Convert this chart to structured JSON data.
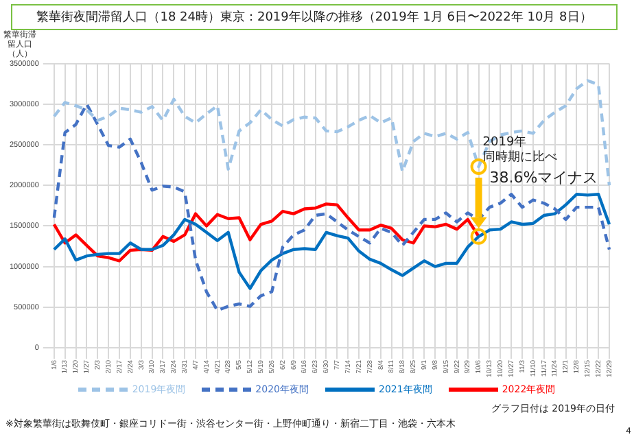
{
  "chart_data": {
    "type": "line",
    "title": "繁華街夜間滞留人口（18 24時）東京：2019年以降の推移（2019年 1月 6日〜2022年 10月 8日）",
    "ylabel": "繁華街滞留人口（人）",
    "categories": [
      "1/6",
      "1/13",
      "1/20",
      "1/27",
      "2/3",
      "2/10",
      "2/17",
      "2/24",
      "3/3",
      "3/10",
      "3/17",
      "3/24",
      "3/31",
      "4/7",
      "4/14",
      "4/21",
      "4/28",
      "5/5",
      "5/12",
      "5/19",
      "5/26",
      "6/2",
      "6/9",
      "6/16",
      "6/23",
      "6/30",
      "7/7",
      "7/14",
      "7/21",
      "7/28",
      "8/4",
      "8/11",
      "8/18",
      "8/25",
      "9/1",
      "9/8",
      "9/15",
      "9/22",
      "9/29",
      "10/6",
      "10/13",
      "10/20",
      "10/27",
      "11/3",
      "11/10",
      "11/17",
      "11/24",
      "12/1",
      "12/8",
      "12/15",
      "12/22",
      "12/29"
    ],
    "series": [
      {
        "name": "2019年夜間",
        "color": "#9dc3e6",
        "line_style": "dashed",
        "values": [
          2850000,
          3020000,
          2980000,
          2930000,
          2800000,
          2850000,
          2950000,
          2930000,
          2900000,
          2970000,
          2800000,
          3060000,
          2850000,
          2770000,
          2880000,
          2980000,
          2200000,
          2670000,
          2770000,
          2930000,
          2810000,
          2730000,
          2810000,
          2840000,
          2830000,
          2670000,
          2660000,
          2720000,
          2800000,
          2860000,
          2770000,
          2830000,
          2170000,
          2540000,
          2640000,
          2600000,
          2640000,
          2570000,
          2650000,
          2230000,
          2540000,
          2620000,
          2650000,
          2670000,
          2640000,
          2800000,
          2900000,
          2980000,
          3190000,
          3290000,
          3240000,
          2000000
        ]
      },
      {
        "name": "2020年夜間",
        "color": "#4472c4",
        "line_style": "dashed",
        "values": [
          1600000,
          2650000,
          2750000,
          3000000,
          2750000,
          2490000,
          2470000,
          2570000,
          2280000,
          1940000,
          1990000,
          1980000,
          1920000,
          1080000,
          690000,
          460000,
          510000,
          540000,
          510000,
          640000,
          690000,
          1240000,
          1390000,
          1450000,
          1630000,
          1650000,
          1550000,
          1450000,
          1370000,
          1290000,
          1470000,
          1420000,
          1260000,
          1420000,
          1580000,
          1580000,
          1660000,
          1550000,
          1660000,
          1580000,
          1730000,
          1780000,
          1890000,
          1730000,
          1820000,
          1780000,
          1710000,
          1580000,
          1730000,
          1730000,
          1730000,
          1210000
        ]
      },
      {
        "name": "2021年夜間",
        "color": "#0070c0",
        "line_style": "solid",
        "values": [
          1210000,
          1340000,
          1080000,
          1130000,
          1150000,
          1160000,
          1160000,
          1290000,
          1210000,
          1210000,
          1260000,
          1390000,
          1580000,
          1520000,
          1420000,
          1320000,
          1420000,
          930000,
          730000,
          950000,
          1080000,
          1160000,
          1210000,
          1220000,
          1210000,
          1420000,
          1380000,
          1350000,
          1190000,
          1090000,
          1040000,
          960000,
          890000,
          980000,
          1070000,
          1000000,
          1040000,
          1040000,
          1240000,
          1370000,
          1450000,
          1460000,
          1550000,
          1520000,
          1530000,
          1630000,
          1650000,
          1760000,
          1890000,
          1880000,
          1890000,
          1520000
        ]
      },
      {
        "name": "2022年夜間",
        "color": "#ff0000",
        "line_style": "solid",
        "values": [
          1520000,
          1290000,
          1390000,
          1260000,
          1130000,
          1110000,
          1070000,
          1200000,
          1210000,
          1200000,
          1370000,
          1310000,
          1390000,
          1650000,
          1500000,
          1640000,
          1590000,
          1600000,
          1330000,
          1520000,
          1560000,
          1680000,
          1650000,
          1710000,
          1720000,
          1770000,
          1760000,
          1600000,
          1450000,
          1450000,
          1510000,
          1470000,
          1330000,
          1290000,
          1500000,
          1490000,
          1520000,
          1460000,
          1580000,
          1370000,
          null,
          null,
          null,
          null,
          null,
          null,
          null,
          null,
          null,
          null,
          null,
          null
        ]
      }
    ],
    "ylim": [
      0,
      3500000
    ],
    "yticks": [
      0,
      500000,
      1000000,
      1500000,
      2000000,
      2500000,
      3000000,
      3500000
    ],
    "grid": true,
    "legend": "bottom",
    "marker": "none",
    "annotations": [
      {
        "text": "2019年",
        "x": "10/6",
        "y": 2230000
      },
      "同時期に比べ",
      "38.6%マイナス",
      "※対象繁華街は歌舞伎町・銀座コリドー街・渋谷センター街・上野仲町通り・新宿二丁目・池袋・六本木",
      "グラフ日付は 2019年の日付",
      "4"
    ]
  }
}
